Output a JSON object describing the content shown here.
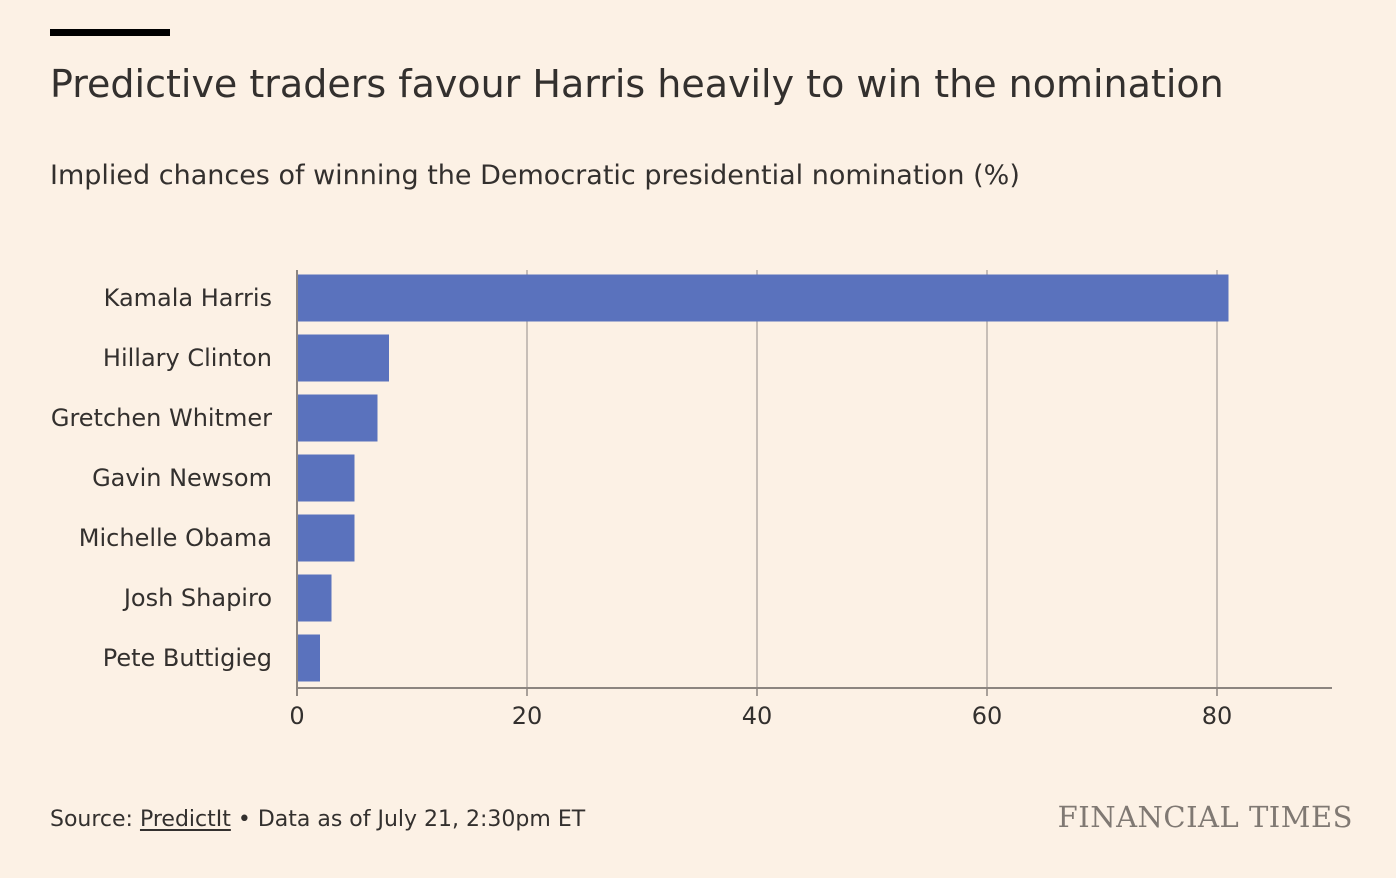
{
  "header": {
    "title": "Predictive traders favour Harris heavily to win the nomination",
    "subtitle": "Implied chances of winning the Democratic presidential nomination (%)"
  },
  "footer": {
    "source_prefix": "Source: ",
    "source_link": "PredictIt",
    "separator": " • ",
    "note": "Data as of July 21, 2:30pm ET",
    "brand": "FINANCIAL TIMES"
  },
  "colors": {
    "background": "#fcf1e5",
    "bar": "#5a72bd",
    "grid": "#b5aea8",
    "axis": "#8c8580",
    "text": "#33302e",
    "brand": "#807973",
    "top_rule": "#000000"
  },
  "chart_data": {
    "type": "bar",
    "orientation": "horizontal",
    "categories": [
      "Kamala Harris",
      "Hillary Clinton",
      "Gretchen Whitmer",
      "Gavin Newsom",
      "Michelle Obama",
      "Josh Shapiro",
      "Pete Buttigieg"
    ],
    "values": [
      81,
      8,
      7,
      5,
      5,
      3,
      2
    ],
    "title": "Predictive traders favour Harris heavily to win the nomination",
    "subtitle": "Implied chances of winning the Democratic presidential nomination (%)",
    "xlabel": "",
    "ylabel": "",
    "xlim": [
      0,
      90
    ],
    "xticks": [
      0,
      20,
      40,
      60,
      80
    ],
    "grid": true,
    "legend": "none"
  }
}
